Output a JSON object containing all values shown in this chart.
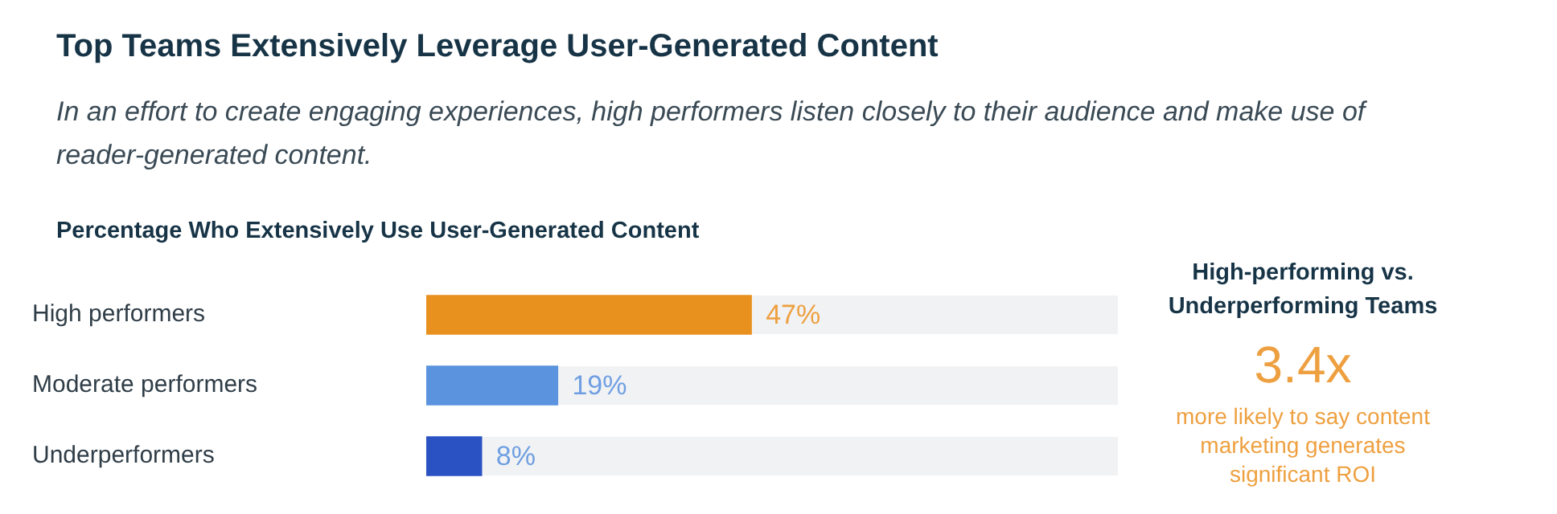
{
  "chart_data": {
    "type": "bar",
    "orientation": "horizontal",
    "title": "Top Teams Extensively Leverage User-Generated Content",
    "subtitle": "In an effort to create engaging experiences, high performers listen closely to their audience and make use of reader-generated content.",
    "categories": [
      "High performers",
      "Moderate performers",
      "Underperformers"
    ],
    "values": [
      47,
      19,
      8
    ],
    "colors": [
      "#e8911f",
      "#5b93de",
      "#2a52c2"
    ],
    "value_labels": [
      "47%",
      "19%",
      "8%"
    ],
    "xlim": [
      0,
      100
    ],
    "tick_labels": "y",
    "annotations": [
      "Percentage Who Extensively Use User-Generated Content",
      "High-performing vs. Underperforming Teams",
      "3.4x",
      "more likely to say content marketing generates significant ROI"
    ]
  }
}
